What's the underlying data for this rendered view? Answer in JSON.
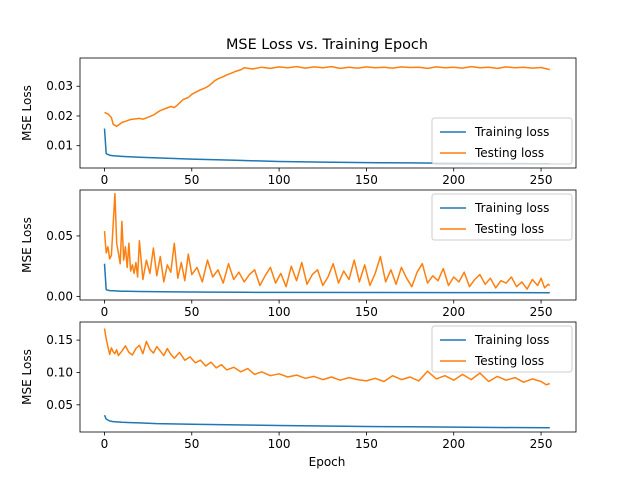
{
  "figure": {
    "title": "MSE Loss vs. Training Epoch",
    "xlabel": "Epoch",
    "colors": {
      "training": "#1f77b4",
      "testing": "#ff7f0e"
    }
  },
  "chart_data": [
    {
      "type": "line",
      "title": "MSE Loss vs. Training Epoch",
      "xlabel": "",
      "ylabel": "MSE Loss",
      "xlim": [
        -14,
        270
      ],
      "ylim": [
        0.0025,
        0.0395
      ],
      "xticks": [
        0,
        50,
        100,
        150,
        200,
        250
      ],
      "yticks": [
        0.01,
        0.02,
        0.03
      ],
      "ytick_labels": [
        "0.01",
        "0.02",
        "0.03"
      ],
      "grid": false,
      "legend": "lower right",
      "series": [
        {
          "name": "Training loss",
          "color": "#1f77b4",
          "x": [
            0,
            1,
            3,
            5,
            10,
            20,
            30,
            50,
            75,
            100,
            125,
            150,
            175,
            200,
            225,
            255
          ],
          "values": [
            0.0158,
            0.0073,
            0.0068,
            0.0066,
            0.0064,
            0.0061,
            0.0059,
            0.0055,
            0.0051,
            0.0047,
            0.0045,
            0.0043,
            0.0042,
            0.0041,
            0.004,
            0.0039
          ]
        },
        {
          "name": "Testing loss",
          "color": "#ff7f0e",
          "x": [
            0,
            2,
            4,
            5,
            7,
            10,
            12,
            15,
            20,
            22,
            25,
            28,
            30,
            32,
            35,
            38,
            40,
            42,
            45,
            48,
            50,
            53,
            55,
            58,
            60,
            63,
            65,
            68,
            70,
            73,
            75,
            78,
            80,
            85,
            90,
            95,
            100,
            105,
            110,
            115,
            120,
            125,
            130,
            135,
            140,
            145,
            150,
            155,
            160,
            165,
            170,
            175,
            180,
            185,
            190,
            195,
            200,
            205,
            210,
            215,
            220,
            225,
            230,
            235,
            240,
            245,
            250,
            255
          ],
          "values": [
            0.0212,
            0.0207,
            0.0195,
            0.0172,
            0.0165,
            0.0178,
            0.0182,
            0.0188,
            0.0192,
            0.0189,
            0.0196,
            0.0203,
            0.0211,
            0.0218,
            0.0225,
            0.0232,
            0.0228,
            0.0238,
            0.0255,
            0.0262,
            0.0273,
            0.0282,
            0.0288,
            0.0295,
            0.0302,
            0.0318,
            0.0325,
            0.0332,
            0.0338,
            0.0345,
            0.035,
            0.0355,
            0.0362,
            0.0358,
            0.0364,
            0.036,
            0.0365,
            0.0362,
            0.0366,
            0.0361,
            0.0365,
            0.0362,
            0.0366,
            0.036,
            0.0364,
            0.0361,
            0.0365,
            0.0362,
            0.0364,
            0.0361,
            0.0365,
            0.0363,
            0.0364,
            0.036,
            0.0365,
            0.0362,
            0.0364,
            0.0361,
            0.0366,
            0.0362,
            0.0364,
            0.036,
            0.0365,
            0.0362,
            0.0364,
            0.0361,
            0.0363,
            0.0356
          ]
        }
      ]
    },
    {
      "type": "line",
      "title": "",
      "xlabel": "",
      "ylabel": "MSE Loss",
      "xlim": [
        -14,
        270
      ],
      "ylim": [
        -0.003,
        0.088
      ],
      "xticks": [
        0,
        50,
        100,
        150,
        200,
        250
      ],
      "yticks": [
        0.0,
        0.05
      ],
      "ytick_labels": [
        "0.00",
        "0.05"
      ],
      "grid": false,
      "legend": "upper right",
      "series": [
        {
          "name": "Training loss",
          "color": "#1f77b4",
          "x": [
            0,
            1,
            3,
            5,
            10,
            20,
            40,
            60,
            80,
            100,
            150,
            200,
            255
          ],
          "values": [
            0.027,
            0.0055,
            0.0048,
            0.0046,
            0.0043,
            0.004,
            0.0037,
            0.0035,
            0.0034,
            0.0033,
            0.0032,
            0.0031,
            0.003
          ]
        },
        {
          "name": "Testing loss",
          "color": "#ff7f0e",
          "x": [
            0,
            1,
            2,
            3,
            4,
            5,
            6,
            7,
            8,
            9,
            10,
            11,
            12,
            13,
            14,
            15,
            16,
            17,
            18,
            19,
            20,
            22,
            24,
            26,
            28,
            30,
            32,
            34,
            36,
            38,
            40,
            42,
            44,
            46,
            48,
            50,
            53,
            56,
            59,
            62,
            65,
            68,
            71,
            74,
            77,
            80,
            83,
            86,
            89,
            92,
            95,
            98,
            101,
            104,
            107,
            110,
            113,
            116,
            119,
            122,
            125,
            128,
            131,
            134,
            137,
            140,
            143,
            146,
            149,
            152,
            155,
            158,
            161,
            164,
            167,
            170,
            173,
            176,
            179,
            182,
            185,
            188,
            191,
            194,
            197,
            200,
            203,
            206,
            209,
            212,
            215,
            218,
            221,
            224,
            227,
            230,
            233,
            236,
            239,
            242,
            245,
            248,
            250,
            252,
            254,
            255
          ],
          "values": [
            0.054,
            0.036,
            0.041,
            0.031,
            0.034,
            0.06,
            0.085,
            0.044,
            0.036,
            0.027,
            0.062,
            0.03,
            0.041,
            0.024,
            0.044,
            0.021,
            0.026,
            0.019,
            0.028,
            0.016,
            0.046,
            0.014,
            0.03,
            0.019,
            0.04,
            0.017,
            0.033,
            0.012,
            0.026,
            0.02,
            0.044,
            0.015,
            0.028,
            0.013,
            0.035,
            0.018,
            0.024,
            0.012,
            0.03,
            0.016,
            0.022,
            0.011,
            0.027,
            0.014,
            0.02,
            0.012,
            0.018,
            0.022,
            0.009,
            0.017,
            0.024,
            0.011,
            0.019,
            0.008,
            0.025,
            0.013,
            0.028,
            0.01,
            0.018,
            0.022,
            0.009,
            0.016,
            0.027,
            0.011,
            0.021,
            0.014,
            0.03,
            0.012,
            0.026,
            0.009,
            0.019,
            0.033,
            0.012,
            0.022,
            0.01,
            0.024,
            0.015,
            0.008,
            0.02,
            0.027,
            0.011,
            0.017,
            0.013,
            0.023,
            0.009,
            0.016,
            0.012,
            0.02,
            0.008,
            0.014,
            0.018,
            0.01,
            0.015,
            0.007,
            0.013,
            0.011,
            0.016,
            0.008,
            0.012,
            0.006,
            0.014,
            0.009,
            0.015,
            0.007,
            0.01,
            0.009
          ]
        }
      ]
    },
    {
      "type": "line",
      "title": "",
      "xlabel": "Epoch",
      "ylabel": "MSE Loss",
      "xlim": [
        -14,
        270
      ],
      "ylim": [
        0.008,
        0.178
      ],
      "xticks": [
        0,
        50,
        100,
        150,
        200,
        250
      ],
      "yticks": [
        0.05,
        0.1,
        0.15
      ],
      "ytick_labels": [
        "0.05",
        "0.10",
        "0.15"
      ],
      "grid": false,
      "legend": "upper right",
      "series": [
        {
          "name": "Training loss",
          "color": "#1f77b4",
          "x": [
            0,
            1,
            3,
            5,
            10,
            20,
            30,
            50,
            75,
            100,
            125,
            150,
            175,
            200,
            225,
            255
          ],
          "values": [
            0.034,
            0.028,
            0.025,
            0.024,
            0.023,
            0.022,
            0.021,
            0.02,
            0.019,
            0.018,
            0.0172,
            0.0165,
            0.016,
            0.0155,
            0.015,
            0.0145
          ]
        },
        {
          "name": "Testing loss",
          "color": "#ff7f0e",
          "x": [
            0,
            1,
            2,
            3,
            4,
            5,
            6,
            7,
            8,
            10,
            12,
            14,
            16,
            18,
            20,
            22,
            24,
            26,
            28,
            30,
            32,
            34,
            36,
            38,
            40,
            43,
            46,
            49,
            52,
            55,
            58,
            61,
            64,
            67,
            70,
            74,
            78,
            82,
            86,
            90,
            95,
            100,
            105,
            110,
            115,
            120,
            125,
            130,
            135,
            140,
            145,
            150,
            155,
            160,
            165,
            170,
            175,
            180,
            185,
            190,
            195,
            200,
            205,
            210,
            215,
            220,
            225,
            230,
            235,
            240,
            245,
            250,
            253,
            255
          ],
          "values": [
            0.168,
            0.152,
            0.14,
            0.128,
            0.138,
            0.132,
            0.129,
            0.135,
            0.126,
            0.133,
            0.141,
            0.131,
            0.127,
            0.137,
            0.142,
            0.129,
            0.148,
            0.136,
            0.13,
            0.14,
            0.133,
            0.126,
            0.137,
            0.128,
            0.122,
            0.131,
            0.119,
            0.124,
            0.115,
            0.119,
            0.11,
            0.116,
            0.107,
            0.112,
            0.104,
            0.108,
            0.101,
            0.106,
            0.097,
            0.101,
            0.095,
            0.098,
            0.093,
            0.096,
            0.091,
            0.094,
            0.089,
            0.093,
            0.088,
            0.092,
            0.089,
            0.087,
            0.091,
            0.086,
            0.095,
            0.089,
            0.093,
            0.087,
            0.102,
            0.09,
            0.095,
            0.088,
            0.097,
            0.089,
            0.099,
            0.086,
            0.094,
            0.088,
            0.092,
            0.085,
            0.09,
            0.086,
            0.081,
            0.083
          ]
        }
      ]
    }
  ]
}
